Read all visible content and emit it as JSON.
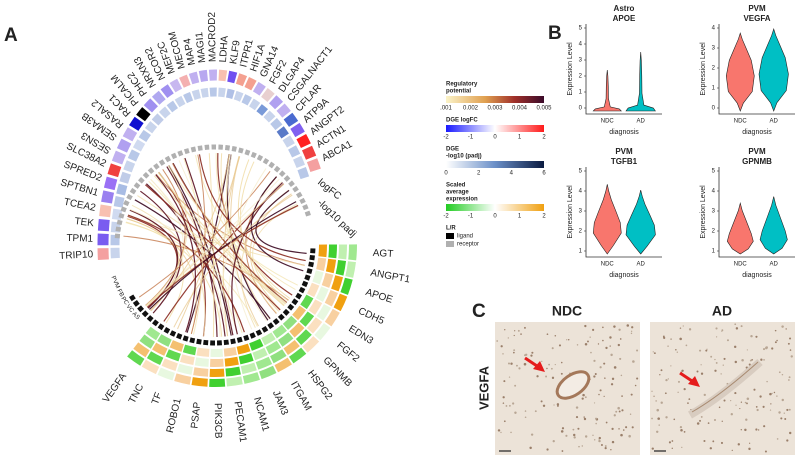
{
  "panel_a": {
    "label": "A",
    "genes": [
      "TRIP10",
      "TPM1",
      "TEK",
      "TCEA2",
      "SPTBN1",
      "SPRED2",
      "SLC38A2",
      "SESN3",
      "SEMA3B",
      "RASAL2",
      "RAC1",
      "PICALM",
      "PHC2",
      "NRXN3",
      "NCOR2",
      "MEF2C",
      "MECOM",
      "MAP4",
      "MAGI1",
      "MACROD2",
      "LDHA",
      "KLF9",
      "ITPR1",
      "HIF1A",
      "GNA14",
      "FGF2",
      "DLGAP4",
      "CSGALNACT1",
      "CFLAR",
      "ATP9A",
      "ANGPT2",
      "ACTN1",
      "ABCA1"
    ],
    "ring_labels": [
      "logFC",
      "-log10 padj"
    ],
    "targets": [
      "AGT",
      "ANGPT1",
      "APOE",
      "CDH5",
      "EDN3",
      "FGF2",
      "GPNMB",
      "HSPG2",
      "ITGAM",
      "JAM3",
      "NCAM1",
      "PECAM1",
      "PIK3CB",
      "PSAP",
      "ROBO1",
      "TF",
      "TNC",
      "VEGFA"
    ],
    "cell_types": [
      "AS",
      "VC",
      "PC",
      "FB",
      "PVM"
    ],
    "legend": {
      "regulatory": {
        "title_lines": [
          "Regulatory",
          "potential"
        ],
        "ticks": [
          ".001",
          "0.002",
          "0.003",
          "0.004",
          "0.005"
        ]
      },
      "dge_logfc": {
        "title_lines": [
          "DGE logFC"
        ],
        "ticks": [
          "-2",
          "-1",
          "0",
          "1",
          "2"
        ]
      },
      "dge_padj": {
        "title_lines": [
          "DGE",
          "-log10 (padj)"
        ],
        "ticks": [
          "0",
          "2",
          "4",
          "6"
        ]
      },
      "scaled": {
        "title_lines": [
          "Scaled",
          "average",
          "expression"
        ],
        "ticks": [
          "-2",
          "-1",
          "0",
          "1",
          "2"
        ]
      },
      "lr": {
        "title_lines": [
          "L/R"
        ],
        "items": [
          "ligand",
          "receptor"
        ]
      }
    }
  },
  "panel_b": {
    "label": "B",
    "plots": [
      {
        "cell": "Astro",
        "gene": "APOE",
        "yticks": [
          0,
          1,
          2,
          3,
          4,
          5
        ],
        "groups": [
          "NDC",
          "AD"
        ],
        "x_label": "diagnosis",
        "y_label": "Expression Level"
      },
      {
        "cell": "PVM",
        "gene": "VEGFA",
        "yticks": [
          0,
          1,
          2,
          3,
          4
        ],
        "groups": [
          "NDC",
          "AD"
        ],
        "x_label": "diagnosis",
        "y_label": "Expression Level"
      },
      {
        "cell": "PVM",
        "gene": "TGFB1",
        "yticks": [
          1,
          2,
          3,
          4,
          5
        ],
        "groups": [
          "NDC",
          "AD"
        ],
        "x_label": "diagnosis",
        "y_label": "Expression Level"
      },
      {
        "cell": "PVM",
        "gene": "GPNMB",
        "yticks": [
          1,
          2,
          3,
          4,
          5
        ],
        "groups": [
          "NDC",
          "AD"
        ],
        "x_label": "diagnosis",
        "y_label": "Expression Level"
      }
    ]
  },
  "panel_c": {
    "label": "C",
    "columns": [
      "NDC",
      "AD"
    ],
    "row_label": "VEGFA"
  }
}
